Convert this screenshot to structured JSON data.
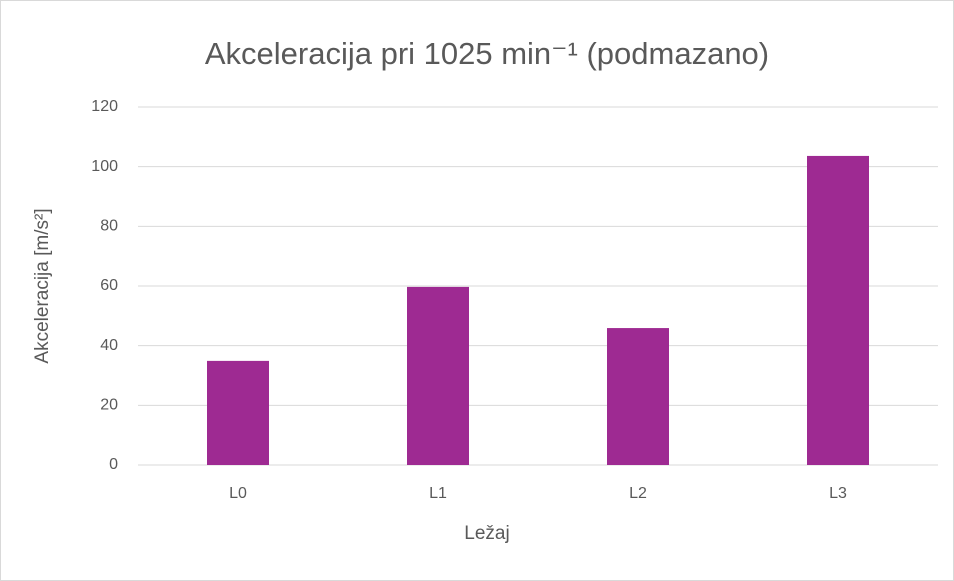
{
  "chart_data": {
    "type": "bar",
    "title": "Akceleracija pri 1025 min⁻¹ (podmazano)",
    "x_label": "Ležaj",
    "y_label": "Akceleracija [m/s²]",
    "categories": [
      "L0",
      "L1",
      "L2",
      "L3"
    ],
    "values": [
      34.9,
      59.7,
      45.9,
      103.6
    ],
    "color": "#9e2a92",
    "ylim": [
      0,
      120
    ],
    "yticks": [
      0,
      20,
      40,
      60,
      80,
      100,
      120
    ],
    "grid": true
  }
}
